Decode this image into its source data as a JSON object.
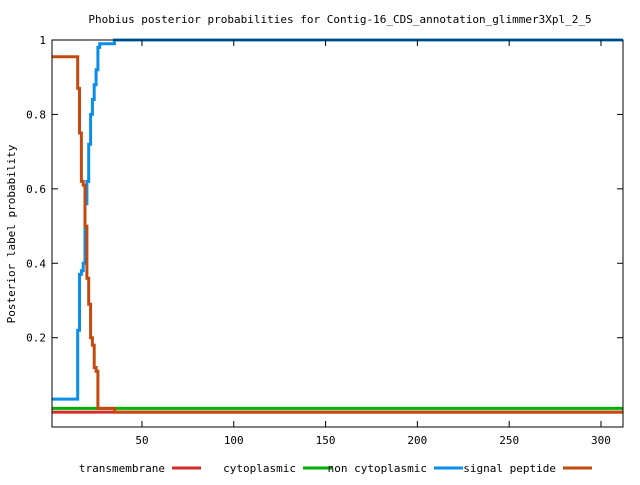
{
  "chart_data": {
    "type": "line",
    "title": "Phobius posterior probabilities for Contig-16_CDS_annotation_glimmer3Xpl_2_5",
    "xlabel": "",
    "ylabel": "Posterior label probability",
    "xlim": [
      1,
      312
    ],
    "ylim": [
      -0.04,
      1
    ],
    "x_ticks": [
      50,
      100,
      150,
      200,
      250,
      300
    ],
    "x_tick_labels": [
      "50",
      "100",
      "150",
      "200",
      "250",
      "300"
    ],
    "y_ticks": [
      0.2,
      0.4,
      0.6,
      0.8,
      1
    ],
    "y_tick_labels": [
      "0.2",
      "0.4",
      "0.6",
      "0.8",
      "1"
    ],
    "legend_position": "bottom",
    "grid": false,
    "series": [
      {
        "name": "transmembrane",
        "color": "#d62b2b",
        "points": [
          [
            1,
            0
          ],
          [
            312,
            0
          ]
        ]
      },
      {
        "name": "cytoplasmic",
        "color": "#00b000",
        "points": [
          [
            1,
            0.01
          ],
          [
            312,
            0.01
          ]
        ]
      },
      {
        "name": "non cytoplasmic",
        "color": "#0a8ee8",
        "points": [
          [
            1,
            0.035
          ],
          [
            15,
            0.035
          ],
          [
            15,
            0.22
          ],
          [
            16,
            0.22
          ],
          [
            16,
            0.37
          ],
          [
            17,
            0.37
          ],
          [
            17,
            0.38
          ],
          [
            18,
            0.38
          ],
          [
            18,
            0.4
          ],
          [
            19,
            0.4
          ],
          [
            19,
            0.56
          ],
          [
            20,
            0.56
          ],
          [
            20,
            0.62
          ],
          [
            21,
            0.62
          ],
          [
            21,
            0.72
          ],
          [
            22,
            0.72
          ],
          [
            22,
            0.8
          ],
          [
            23,
            0.8
          ],
          [
            23,
            0.84
          ],
          [
            24,
            0.84
          ],
          [
            24,
            0.88
          ],
          [
            25,
            0.88
          ],
          [
            25,
            0.92
          ],
          [
            26,
            0.92
          ],
          [
            26,
            0.98
          ],
          [
            27,
            0.98
          ],
          [
            27,
            0.99
          ],
          [
            35,
            0.99
          ],
          [
            35,
            1
          ],
          [
            312,
            1
          ]
        ]
      },
      {
        "name": "signal peptide",
        "color": "#c24a0f",
        "points": [
          [
            1,
            0.955
          ],
          [
            15,
            0.955
          ],
          [
            15,
            0.87
          ],
          [
            16,
            0.87
          ],
          [
            16,
            0.75
          ],
          [
            17,
            0.75
          ],
          [
            17,
            0.62
          ],
          [
            18,
            0.62
          ],
          [
            18,
            0.61
          ],
          [
            19,
            0.61
          ],
          [
            19,
            0.5
          ],
          [
            20,
            0.5
          ],
          [
            20,
            0.36
          ],
          [
            21,
            0.36
          ],
          [
            21,
            0.29
          ],
          [
            22,
            0.29
          ],
          [
            22,
            0.2
          ],
          [
            23,
            0.2
          ],
          [
            23,
            0.18
          ],
          [
            24,
            0.18
          ],
          [
            24,
            0.12
          ],
          [
            25,
            0.12
          ],
          [
            25,
            0.11
          ],
          [
            26,
            0.11
          ],
          [
            26,
            0.01
          ],
          [
            35,
            0.01
          ],
          [
            35,
            0
          ],
          [
            312,
            0
          ]
        ]
      }
    ]
  }
}
